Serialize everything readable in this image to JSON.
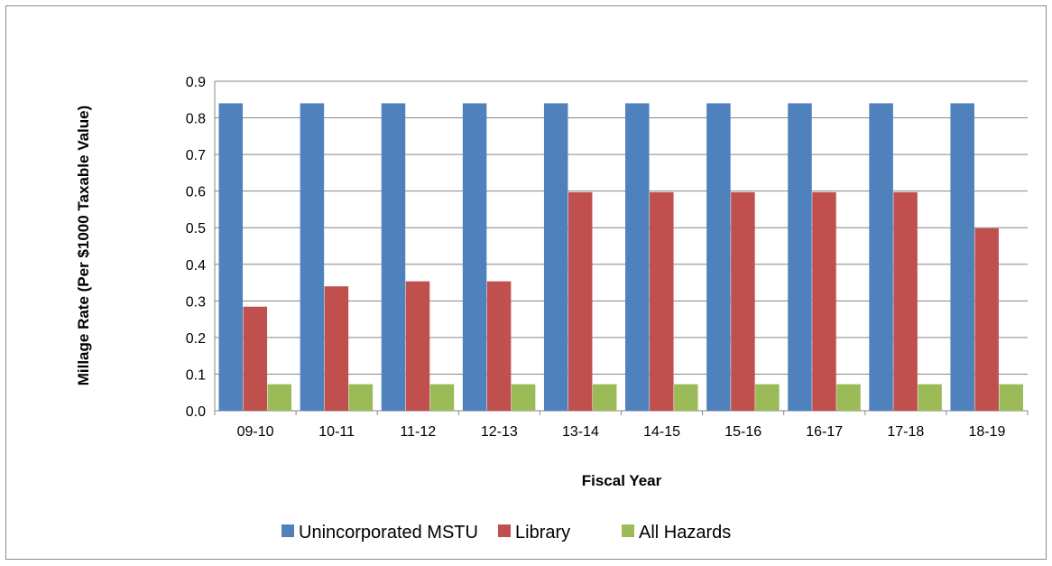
{
  "chart_data": {
    "type": "bar",
    "title": "",
    "xlabel": "Fiscal Year",
    "ylabel": "Millage Rate (Per $1000 Taxable Value)",
    "ylim": [
      0,
      0.9
    ],
    "yticks": [
      "0.0",
      "0.1",
      "0.2",
      "0.3",
      "0.4",
      "0.5",
      "0.6",
      "0.7",
      "0.8",
      "0.9"
    ],
    "grid": true,
    "legend_position": "bottom",
    "categories": [
      "09-10",
      "10-11",
      "11-12",
      "12-13",
      "13-14",
      "14-15",
      "15-16",
      "16-17",
      "17-18",
      "18-19"
    ],
    "series": [
      {
        "name": "Unincorporated MSTU",
        "color": "#4f81bd",
        "values": [
          0.8398,
          0.8398,
          0.8398,
          0.8398,
          0.8398,
          0.8398,
          0.8398,
          0.8398,
          0.8398,
          0.8398
        ]
      },
      {
        "name": "Library",
        "color": "#c0504d",
        "values": [
          0.2842,
          0.3398,
          0.3535,
          0.3535,
          0.5969,
          0.5969,
          0.5969,
          0.5969,
          0.5969,
          0.4983
        ]
      },
      {
        "name": "All Hazards",
        "color": "#9bbb59",
        "values": [
          0.0724,
          0.0724,
          0.0724,
          0.0724,
          0.0724,
          0.0724,
          0.0724,
          0.0724,
          0.0724,
          0.0724
        ]
      }
    ]
  }
}
